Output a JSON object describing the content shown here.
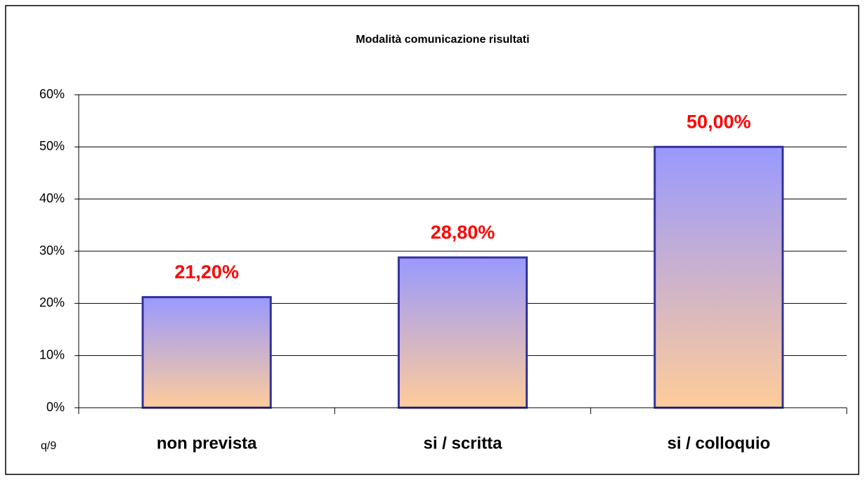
{
  "chart_data": {
    "type": "bar",
    "title": "Modalità comunicazione risultati",
    "categories": [
      "non prevista",
      "si / scritta",
      "si / colloquio"
    ],
    "values": [
      21.2,
      28.8,
      50
    ],
    "value_labels": [
      "21,20%",
      "28,80%",
      "50,00%"
    ],
    "ylim": [
      0,
      60
    ],
    "yticks": [
      {
        "value": 0,
        "label": "0%"
      },
      {
        "value": 10,
        "label": "10%"
      },
      {
        "value": 20,
        "label": "20%"
      },
      {
        "value": 30,
        "label": "30%"
      },
      {
        "value": 40,
        "label": "40%"
      },
      {
        "value": 50,
        "label": "50%"
      },
      {
        "value": 60,
        "label": "60%"
      }
    ],
    "grid": true,
    "gradient": [
      "#9999ff",
      "#ffcc99"
    ],
    "edge_color": "#333399",
    "annotation": "q/9"
  }
}
